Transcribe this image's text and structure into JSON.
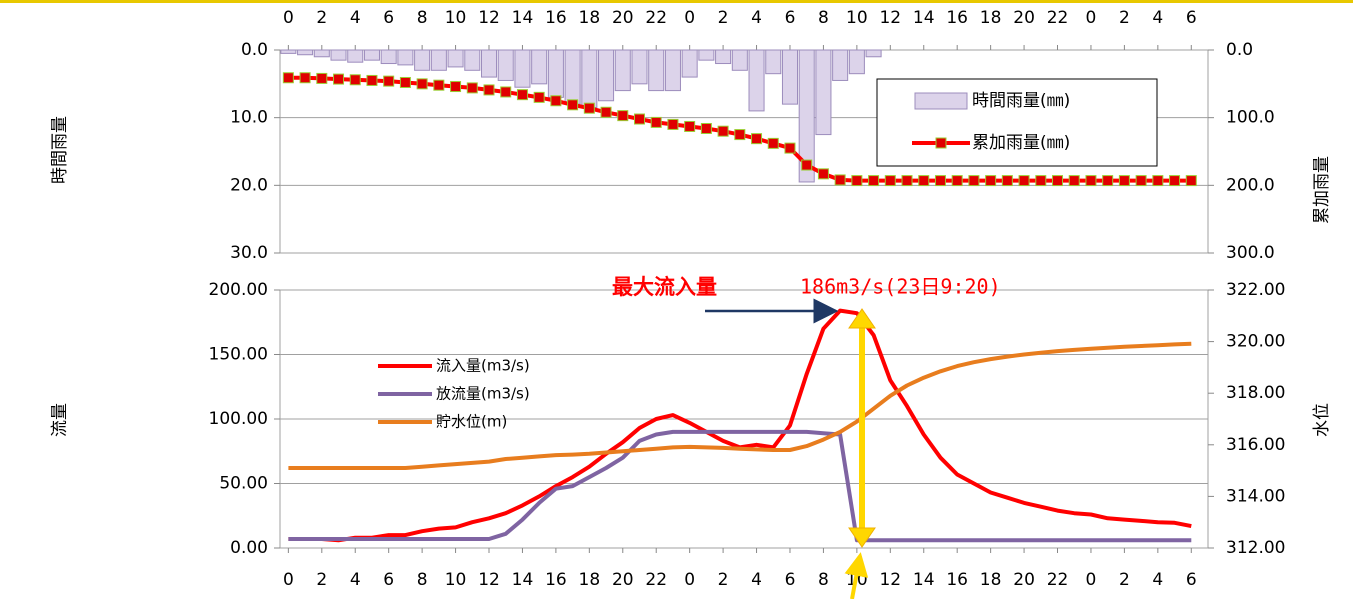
{
  "chart_data": [
    {
      "type": "bar",
      "ylabel": "時間雨量",
      "y2label": "累加雨量",
      "x": [
        0,
        1,
        2,
        3,
        4,
        5,
        6,
        7,
        8,
        9,
        10,
        11,
        12,
        13,
        14,
        15,
        16,
        17,
        18,
        19,
        20,
        21,
        22,
        23,
        24,
        25,
        26,
        27,
        28,
        29,
        30,
        31,
        32,
        33,
        34,
        35,
        36,
        37,
        38,
        39,
        40,
        41,
        42,
        43,
        44,
        45,
        46,
        47,
        48,
        49,
        50,
        51,
        52,
        53,
        54
      ],
      "xlim": [
        -0.5,
        55
      ],
      "xticks": [
        0,
        2,
        4,
        6,
        8,
        10,
        12,
        14,
        16,
        18,
        20,
        22,
        {
          "value": 24,
          "label": "0"
        },
        {
          "value": 26,
          "label": "2"
        },
        {
          "value": 28,
          "label": "4"
        },
        {
          "value": 30,
          "label": "6"
        },
        {
          "value": 32,
          "label": "8"
        },
        {
          "value": 34,
          "label": "10"
        },
        {
          "value": 36,
          "label": "12"
        },
        {
          "value": 38,
          "label": "14"
        },
        {
          "value": 40,
          "label": "16"
        },
        {
          "value": 42,
          "label": "18"
        },
        {
          "value": 44,
          "label": "20"
        },
        {
          "value": 46,
          "label": "22"
        },
        {
          "value": 48,
          "label": "0"
        },
        {
          "value": 50,
          "label": "2"
        },
        {
          "value": 52,
          "label": "4"
        },
        {
          "value": 54,
          "label": "6"
        }
      ],
      "xaxis_position": "top",
      "ylim": [
        0,
        30
      ],
      "yreverse": true,
      "yticks": [
        {
          "value": 0,
          "label": "0.0"
        },
        {
          "value": 10,
          "label": "10.0"
        },
        {
          "value": 20,
          "label": "20.0"
        },
        {
          "value": 30,
          "label": "30.0"
        }
      ],
      "y2lim": [
        0,
        300
      ],
      "y2reverse": true,
      "y2ticks": [
        {
          "value": 0,
          "label": "0.0"
        },
        {
          "value": 100,
          "label": "100.0"
        },
        {
          "value": 200,
          "label": "200.0"
        },
        {
          "value": 300,
          "label": "300.0"
        }
      ],
      "grid": true,
      "legend": "upper right",
      "series": [
        {
          "name": "時間雨量(㎜)",
          "type": "bar",
          "color": "#dcd3ea",
          "values": [
            0.5,
            0.7,
            1,
            1.5,
            1.8,
            1.5,
            2,
            2.2,
            3,
            3,
            2.5,
            3,
            4,
            4.5,
            5.5,
            5,
            7,
            8,
            8.5,
            7.5,
            6,
            5,
            6,
            6,
            4,
            1.5,
            2,
            3,
            9,
            3.5,
            8,
            19.5,
            12.5,
            4.5,
            3.5,
            1,
            0,
            0,
            0,
            0,
            0,
            0,
            0,
            0,
            0,
            0,
            0,
            0,
            0,
            0,
            0,
            0,
            0,
            0,
            0
          ]
        },
        {
          "name": "累加雨量(㎜)",
          "type": "line",
          "axis": "y2",
          "color": "#ff0000",
          "marker": "square",
          "values": [
            41,
            41,
            42,
            43,
            44,
            45,
            46,
            48,
            50,
            52,
            54,
            56,
            59,
            62,
            66,
            70,
            75,
            81,
            86,
            92,
            97,
            102,
            107,
            110,
            113,
            116,
            120,
            125,
            131,
            138,
            145,
            170,
            183,
            192,
            193,
            193,
            193,
            193,
            193,
            193,
            193,
            193,
            193,
            193,
            193,
            193,
            193,
            193,
            193,
            193,
            193,
            193,
            193,
            193,
            193
          ]
        }
      ]
    },
    {
      "type": "line",
      "ylabel": "流量",
      "y2label": "水位",
      "x": [
        0,
        1,
        2,
        3,
        4,
        5,
        6,
        7,
        8,
        9,
        10,
        11,
        12,
        13,
        14,
        15,
        16,
        17,
        18,
        19,
        20,
        21,
        22,
        23,
        24,
        25,
        26,
        27,
        28,
        29,
        30,
        31,
        32,
        33,
        34,
        35,
        36,
        37,
        38,
        39,
        40,
        41,
        42,
        43,
        44,
        45,
        46,
        47,
        48,
        49,
        50,
        51,
        52,
        53,
        54
      ],
      "xlim": [
        -0.5,
        55
      ],
      "xticks": [
        0,
        2,
        4,
        6,
        8,
        10,
        12,
        14,
        16,
        18,
        20,
        22,
        {
          "value": 24,
          "label": "0"
        },
        {
          "value": 26,
          "label": "2"
        },
        {
          "value": 28,
          "label": "4"
        },
        {
          "value": 30,
          "label": "6"
        },
        {
          "value": 32,
          "label": "8"
        },
        {
          "value": 34,
          "label": "10"
        },
        {
          "value": 36,
          "label": "12"
        },
        {
          "value": 38,
          "label": "14"
        },
        {
          "value": 40,
          "label": "16"
        },
        {
          "value": 42,
          "label": "18"
        },
        {
          "value": 44,
          "label": "20"
        },
        {
          "value": 46,
          "label": "22"
        },
        {
          "value": 48,
          "label": "0"
        },
        {
          "value": 50,
          "label": "2"
        },
        {
          "value": 52,
          "label": "4"
        },
        {
          "value": 54,
          "label": "6"
        }
      ],
      "xaxis_position": "bottom",
      "ylim": [
        0,
        200
      ],
      "yticks": [
        {
          "value": 0,
          "label": "0.00"
        },
        {
          "value": 50,
          "label": "50.00"
        },
        {
          "value": 100,
          "label": "100.00"
        },
        {
          "value": 150,
          "label": "150.00"
        },
        {
          "value": 200,
          "label": "200.00"
        }
      ],
      "y2lim": [
        312,
        322
      ],
      "y2ticks": [
        {
          "value": 312,
          "label": "312.00"
        },
        {
          "value": 314,
          "label": "314.00"
        },
        {
          "value": 316,
          "label": "316.00"
        },
        {
          "value": 318,
          "label": "318.00"
        },
        {
          "value": 320,
          "label": "320.00"
        },
        {
          "value": 322,
          "label": "322.00"
        }
      ],
      "grid": true,
      "legend": "upper left",
      "annotations": [
        {
          "text": "最大流入量"
        },
        {
          "text": "186m3/s(23日9:20)"
        }
      ],
      "series": [
        {
          "name": "流入量(m3/s)",
          "type": "line",
          "color": "#ff0000",
          "values": [
            7,
            7,
            7,
            6,
            8,
            8,
            10,
            10,
            13,
            15,
            16,
            20,
            23,
            27,
            33,
            40,
            48,
            55,
            63,
            73,
            82,
            93,
            100,
            103,
            97,
            90,
            83,
            78,
            80,
            78,
            95,
            135,
            170,
            184,
            182,
            165,
            130,
            110,
            88,
            70,
            57,
            50,
            43,
            39,
            35,
            32,
            29,
            27,
            26,
            23,
            22,
            21,
            20,
            19.5,
            17
          ]
        },
        {
          "name": "放流量(m3/s)",
          "type": "line",
          "color": "#7f64a2",
          "values": [
            7,
            7,
            7,
            7,
            7,
            7,
            7,
            7,
            7,
            7,
            7,
            7,
            7,
            11,
            22,
            35,
            46,
            48,
            55,
            62,
            70,
            83,
            88,
            90,
            90,
            90,
            90,
            90,
            90,
            90,
            90,
            90,
            89,
            88,
            6,
            6,
            6,
            6,
            6,
            6,
            6,
            6,
            6,
            6,
            6,
            6,
            6,
            6,
            6,
            6,
            6,
            6,
            6,
            6,
            6
          ]
        },
        {
          "name": "貯水位(m)",
          "type": "line",
          "axis": "y2",
          "color": "#e87d1e",
          "values": [
            315.1,
            315.1,
            315.1,
            315.1,
            315.1,
            315.1,
            315.1,
            315.1,
            315.15,
            315.2,
            315.25,
            315.3,
            315.35,
            315.45,
            315.5,
            315.55,
            315.6,
            315.62,
            315.65,
            315.7,
            315.75,
            315.8,
            315.85,
            315.9,
            315.92,
            315.9,
            315.88,
            315.85,
            315.82,
            315.8,
            315.8,
            315.95,
            316.2,
            316.5,
            316.9,
            317.4,
            317.9,
            318.3,
            318.6,
            318.85,
            319.05,
            319.2,
            319.32,
            319.42,
            319.5,
            319.57,
            319.63,
            319.68,
            319.72,
            319.76,
            319.8,
            319.83,
            319.86,
            319.89,
            319.92
          ]
        }
      ]
    }
  ]
}
